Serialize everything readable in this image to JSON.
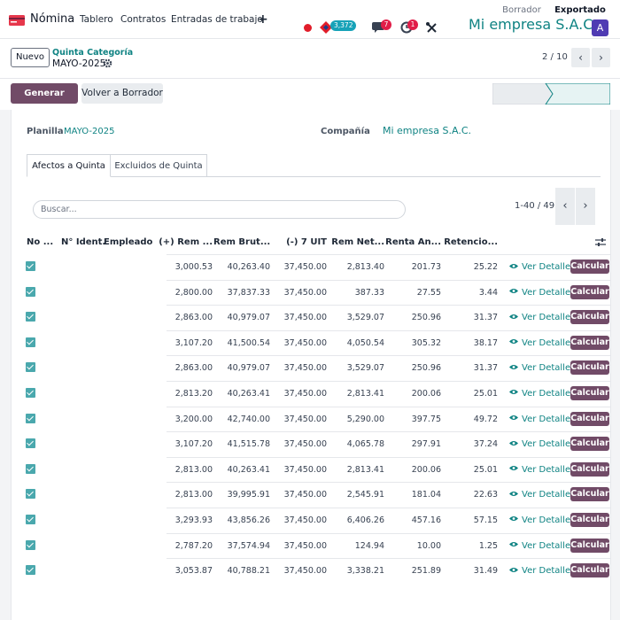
{
  "navbar": {
    "app_name": "Nómina",
    "menu": [
      "Tablero",
      "Contratos",
      "Entradas de trabajo"
    ],
    "plus_icon": "+",
    "counter_pill": "3,372",
    "chat_badge": "7",
    "activity_badge": "1",
    "company": "Mi empresa S.A.C.",
    "avatar_letter": "A"
  },
  "control_panel": {
    "new_label": "Nuevo",
    "breadcrumb_parent": "Quinta Categoría",
    "breadcrumb_current": "MAYO-2025",
    "pager": "2 / 10",
    "prev_icon": "‹",
    "next_icon": "›"
  },
  "form": {
    "btn_excel": "Generar Excel",
    "btn_borrador": "Volver a Borrador",
    "status_steps": [
      "Borrador",
      "Exportado"
    ],
    "active_status": "Exportado",
    "planilla_label": "Planilla",
    "planilla_value": "MAYO-2025",
    "company_label": "Compañía",
    "company_value": "Mi empresa S.A.C."
  },
  "tabs": [
    "Afectos a Quinta",
    "Excluidos de Quinta"
  ],
  "list": {
    "search_placeholder": "Buscar...",
    "pager": "1-40 / 49",
    "headers": [
      "No ...",
      "N° Ident.",
      "Empleado",
      "(+) Rem ...",
      "Rem Brut...",
      "(-) 7 UIT",
      "Rem Net...",
      "Renta An...",
      "Retencio..."
    ],
    "ver_label": "Ver Detalle",
    "calc_label": "Calcular",
    "rows": [
      [
        "3,000.53",
        "40,263.40",
        "37,450.00",
        "2,813.40",
        "201.73",
        "25.22"
      ],
      [
        "2,800.00",
        "37,837.33",
        "37,450.00",
        "387.33",
        "27.55",
        "3.44"
      ],
      [
        "2,863.00",
        "40,979.07",
        "37,450.00",
        "3,529.07",
        "250.96",
        "31.37"
      ],
      [
        "3,107.20",
        "41,500.54",
        "37,450.00",
        "4,050.54",
        "305.32",
        "38.17"
      ],
      [
        "2,863.00",
        "40,979.07",
        "37,450.00",
        "3,529.07",
        "250.96",
        "31.37"
      ],
      [
        "2,813.20",
        "40,263.41",
        "37,450.00",
        "2,813.41",
        "200.06",
        "25.01"
      ],
      [
        "3,200.00",
        "42,740.00",
        "37,450.00",
        "5,290.00",
        "397.75",
        "49.72"
      ],
      [
        "3,107.20",
        "41,515.78",
        "37,450.00",
        "4,065.78",
        "297.91",
        "37.24"
      ],
      [
        "2,813.00",
        "40,263.41",
        "37,450.00",
        "2,813.41",
        "200.06",
        "25.01"
      ],
      [
        "2,813.00",
        "39,995.91",
        "37,450.00",
        "2,545.91",
        "181.04",
        "22.63"
      ],
      [
        "3,293.93",
        "43,856.26",
        "37,450.00",
        "6,406.26",
        "457.16",
        "57.15"
      ],
      [
        "2,787.20",
        "37,574.94",
        "37,450.00",
        "124.94",
        "10.00",
        "1.25"
      ],
      [
        "3,053.87",
        "40,788.21",
        "37,450.00",
        "3,338.21",
        "251.89",
        "31.49"
      ]
    ]
  },
  "colors": {
    "brand": "#714b67",
    "accent": "#0f8383",
    "checkbox": "#4aa8ad"
  }
}
